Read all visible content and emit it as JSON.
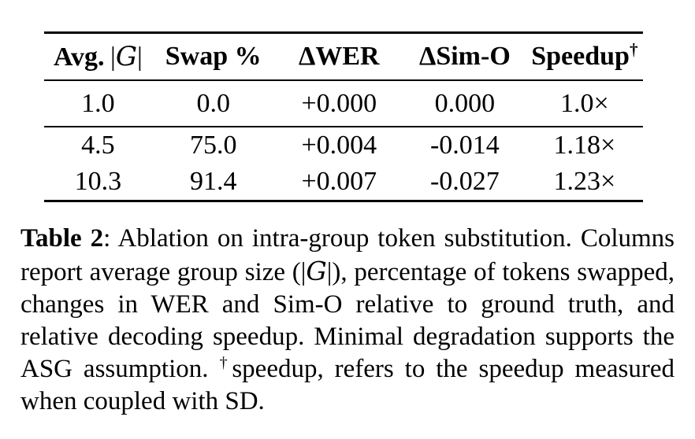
{
  "table": {
    "header": {
      "col1_label": "Avg.",
      "col1_bar_open": "|",
      "col1_group_symbol": "G",
      "col1_bar_close": "|",
      "col2": "Swap %",
      "col3": "ΔWER",
      "col4": "ΔSim-O",
      "col5_label": "Speedup",
      "col5_sup": "†"
    },
    "rows": [
      [
        "1.0",
        "0.0",
        "+0.000",
        "0.000",
        "1.0×"
      ],
      [
        "4.5",
        "75.0",
        "+0.004",
        "-0.014",
        "1.18×"
      ],
      [
        "10.3",
        "91.4",
        "+0.007",
        "-0.027",
        "1.23×"
      ]
    ]
  },
  "caption": {
    "label": "Table 2",
    "sep": ": ",
    "part1": "Ablation on intra-group token substitution. Columns report average group size (|",
    "group_symbol": "G",
    "part2": "|), percentage of tokens swapped, changes in WER and Sim-O relative to ground truth, and relative decoding speedup. Minimal degradation supports the ASG assumption. ",
    "dagger": "†",
    "part3": "speedup, refers to the speedup measured when coupled with SD."
  },
  "colors": {
    "text": "#000000",
    "background": "#ffffff",
    "rule": "#000000"
  }
}
